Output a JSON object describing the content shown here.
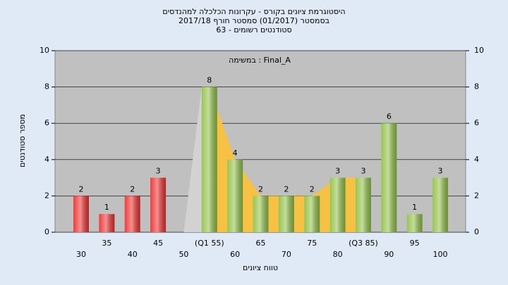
{
  "chart_data": {
    "type": "bar",
    "title": [
      "היסטוגרמת ציונים בקורס - עקרונות הכלכלה למהנדסים",
      "בסמסטר  (01/2017)  סמסטר חורף 2017/18",
      "סטודנטים רשומים - 63"
    ],
    "annotation": "במשימה : Final_A",
    "x_label": "טווח ציונים",
    "y_label": "מספר סטודנטים",
    "categories": [
      "30",
      "35",
      "40",
      "45",
      "50",
      "(Q1 55)",
      "60",
      "65",
      "70",
      "75",
      "80",
      "(Q3 85)",
      "90",
      "95",
      "100"
    ],
    "values": [
      2,
      1,
      2,
      3,
      0,
      8,
      4,
      2,
      2,
      2,
      3,
      3,
      6,
      1,
      3
    ],
    "colors": [
      "#e33",
      "#e33",
      "#e33",
      "#e33",
      "#e33",
      "#93c24a",
      "#93c24a",
      "#93c24a",
      "#93c24a",
      "#93c24a",
      "#93c24a",
      "#93c24a",
      "#93c24a",
      "#93c24a",
      "#93c24a"
    ],
    "quartile_range": [
      5,
      11
    ],
    "ylim": [
      0,
      10
    ],
    "yticks": [
      0,
      2,
      4,
      6,
      8,
      10
    ],
    "y2lim": [
      0,
      10
    ],
    "y2ticks": [
      0,
      2,
      4,
      6,
      8,
      10
    ],
    "grid": true
  }
}
